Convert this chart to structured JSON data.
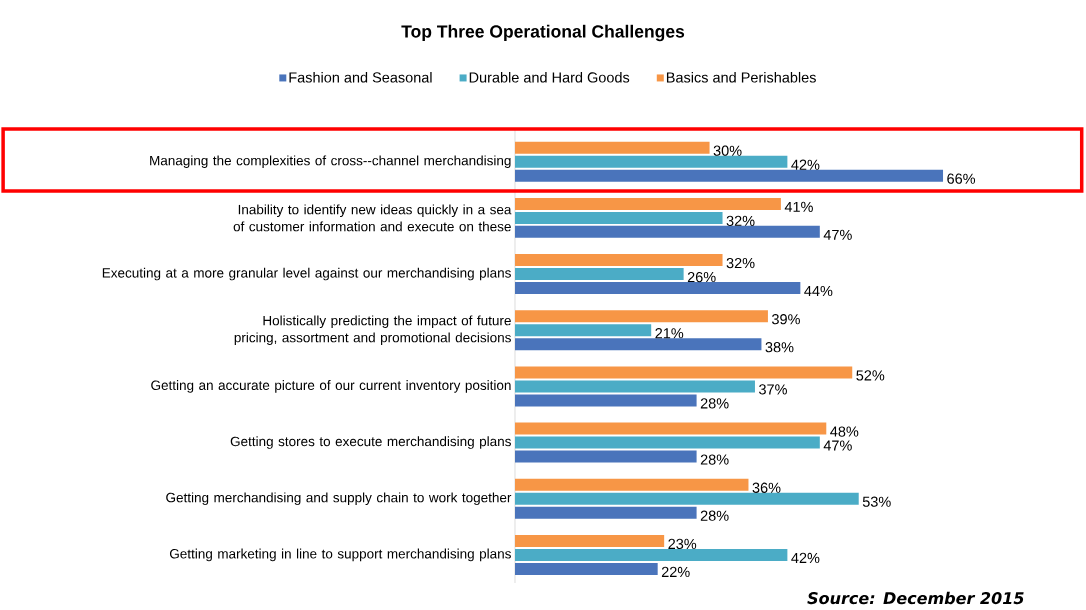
{
  "chart_data": {
    "type": "bar",
    "orientation": "horizontal",
    "title": "Top Three Operational Challenges",
    "legend": "top",
    "categories": [
      "Managing the complexities of cross--channel merchandising",
      "Inability to identify new ideas quickly in a sea of customer information and execute on these",
      "Executing at a more granular level against our merchandising plans",
      "Holistically predicting the impact of future pricing, assortment and promotional decisions",
      "Getting an accurate picture of our current inventory position",
      "Getting stores to execute merchandising plans",
      "Getting merchandising and supply chain to work together",
      "Getting marketing in line to support merchandising plans"
    ],
    "series": [
      {
        "name": "Fashion and Seasonal",
        "color": "#4a74bb",
        "values": [
          66,
          47,
          44,
          38,
          28,
          28,
          28,
          22
        ],
        "value_labels": [
          "66%",
          "47%",
          "44%",
          "38%",
          "28%",
          "28%",
          "28%",
          "22%"
        ]
      },
      {
        "name": "Durable and Hard Goods",
        "color": "#4bacc6",
        "values": [
          42,
          32,
          26,
          21,
          37,
          47,
          53,
          42
        ],
        "value_labels": [
          "42%",
          "32%",
          "26%",
          "21%",
          "37%",
          "47%",
          "53%",
          "42%"
        ]
      },
      {
        "name": "Basics and Perishables",
        "color": "#f79646",
        "values": [
          30,
          41,
          32,
          39,
          52,
          48,
          36,
          23
        ],
        "value_labels": [
          "30%",
          "41%",
          "32%",
          "39%",
          "52%",
          "48%",
          "36%",
          "23%"
        ]
      }
    ],
    "annotations": [
      "Source: December 2015"
    ]
  }
}
